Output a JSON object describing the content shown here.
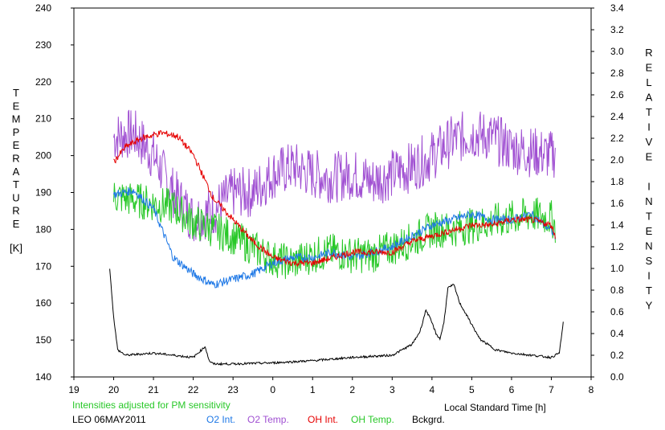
{
  "chart_data": {
    "type": "line",
    "ylabel_left": "TEMPERATURE",
    "ylabel_left_unit": "[K]",
    "ylabel_right": "RELATIVE INTENSITY",
    "xlabel": "Local Standard Time [h]",
    "xlim": [
      19,
      8
    ],
    "ylim_left": [
      140,
      240
    ],
    "ylim_right": [
      0.0,
      3.4
    ],
    "x_ticks": [
      "19",
      "20",
      "21",
      "22",
      "23",
      "0",
      "1",
      "2",
      "3",
      "4",
      "5",
      "6",
      "7",
      "8"
    ],
    "y_ticks_left": [
      "140",
      "150",
      "160",
      "170",
      "180",
      "190",
      "200",
      "210",
      "220",
      "230",
      "240"
    ],
    "y_ticks_right": [
      "0.0",
      "0.2",
      "0.4",
      "0.6",
      "0.8",
      "1.0",
      "1.2",
      "1.4",
      "1.6",
      "1.8",
      "2.0",
      "2.2",
      "2.4",
      "2.6",
      "2.8",
      "3.0",
      "3.2",
      "3.4"
    ],
    "grid": false,
    "annotation": "Intensities adjusted for PM sensitivity",
    "station": "LEO 06MAY2011",
    "legend": [
      {
        "name": "O2 Int.",
        "color": "#1e78e6",
        "axis": "right"
      },
      {
        "name": "O2 Temp.",
        "color": "#a050d2",
        "axis": "left"
      },
      {
        "name": "OH Int.",
        "color": "#e60000",
        "axis": "right"
      },
      {
        "name": "OH Temp.",
        "color": "#28c828",
        "axis": "left"
      },
      {
        "name": "Bckgrd.",
        "color": "#000000",
        "axis": "right"
      }
    ],
    "series": [
      {
        "name": "O2 Temp.",
        "axis": "left",
        "noise": 7,
        "x": [
          20,
          20.5,
          21,
          21.5,
          22,
          22.5,
          23,
          23.5,
          24,
          24.5,
          25,
          25.5,
          26,
          26.5,
          27,
          27.5,
          28,
          28.5,
          29,
          29.5,
          30,
          30.5,
          31,
          31.1
        ],
        "y": [
          205,
          206,
          200,
          190,
          183,
          185,
          190,
          190,
          195,
          197,
          195,
          194,
          195,
          193,
          195,
          197,
          200,
          204,
          206,
          205,
          202,
          201,
          200,
          201
        ]
      },
      {
        "name": "OH Temp.",
        "axis": "left",
        "noise": 5,
        "x": [
          20,
          20.5,
          21,
          21.5,
          22,
          22.5,
          23,
          23.5,
          24,
          24.5,
          25,
          25.5,
          26,
          26.5,
          27,
          27.5,
          28,
          28.5,
          29,
          29.5,
          30,
          30.5,
          31,
          31.1
        ],
        "y": [
          189,
          188,
          187,
          186,
          182,
          180,
          178,
          175,
          172,
          171,
          173,
          174,
          173,
          173,
          175,
          177,
          180,
          180,
          181,
          182,
          183,
          184,
          183,
          181
        ]
      },
      {
        "name": "O2 Int.",
        "axis": "right",
        "noise": 0.04,
        "x": [
          20,
          20.5,
          21,
          21.5,
          22,
          22.5,
          23,
          23.5,
          24,
          24.5,
          25,
          25.5,
          26,
          26.5,
          27,
          27.5,
          28,
          28.5,
          29,
          29.5,
          30,
          30.5,
          31,
          31.1
        ],
        "y": [
          1.68,
          1.72,
          1.55,
          1.1,
          0.95,
          0.85,
          0.9,
          0.95,
          1.05,
          1.1,
          1.1,
          1.15,
          1.1,
          1.15,
          1.2,
          1.3,
          1.4,
          1.45,
          1.5,
          1.45,
          1.45,
          1.5,
          1.35,
          1.3
        ]
      },
      {
        "name": "OH Int.",
        "axis": "right",
        "noise": 0.03,
        "x": [
          20,
          20.3,
          20.7,
          21.2,
          21.6,
          22,
          22.5,
          23,
          23.5,
          24,
          24.5,
          25,
          25.5,
          26,
          26.5,
          27,
          27.5,
          28,
          28.5,
          29,
          29.5,
          30,
          30.5,
          31,
          31.1
        ],
        "y": [
          1.98,
          2.12,
          2.2,
          2.25,
          2.22,
          2.05,
          1.65,
          1.45,
          1.25,
          1.1,
          1.05,
          1.05,
          1.1,
          1.15,
          1.15,
          1.15,
          1.25,
          1.3,
          1.35,
          1.4,
          1.4,
          1.45,
          1.45,
          1.4,
          1.3
        ]
      },
      {
        "name": "Bckgrd.",
        "axis": "right",
        "noise": 0.01,
        "x": [
          19.9,
          20.0,
          20.1,
          20.3,
          21,
          22,
          22.3,
          22.4,
          22.5,
          23,
          24,
          25,
          26,
          27,
          27.5,
          27.7,
          27.85,
          28,
          28.1,
          28.2,
          28.3,
          28.4,
          28.55,
          28.7,
          28.9,
          29.2,
          29.6,
          30,
          30.5,
          31,
          31.2,
          31.3
        ],
        "y": [
          1.0,
          0.55,
          0.25,
          0.2,
          0.22,
          0.18,
          0.28,
          0.15,
          0.12,
          0.12,
          0.13,
          0.15,
          0.18,
          0.2,
          0.3,
          0.42,
          0.62,
          0.5,
          0.4,
          0.35,
          0.5,
          0.82,
          0.85,
          0.68,
          0.55,
          0.35,
          0.25,
          0.22,
          0.2,
          0.18,
          0.22,
          0.5
        ]
      }
    ]
  }
}
